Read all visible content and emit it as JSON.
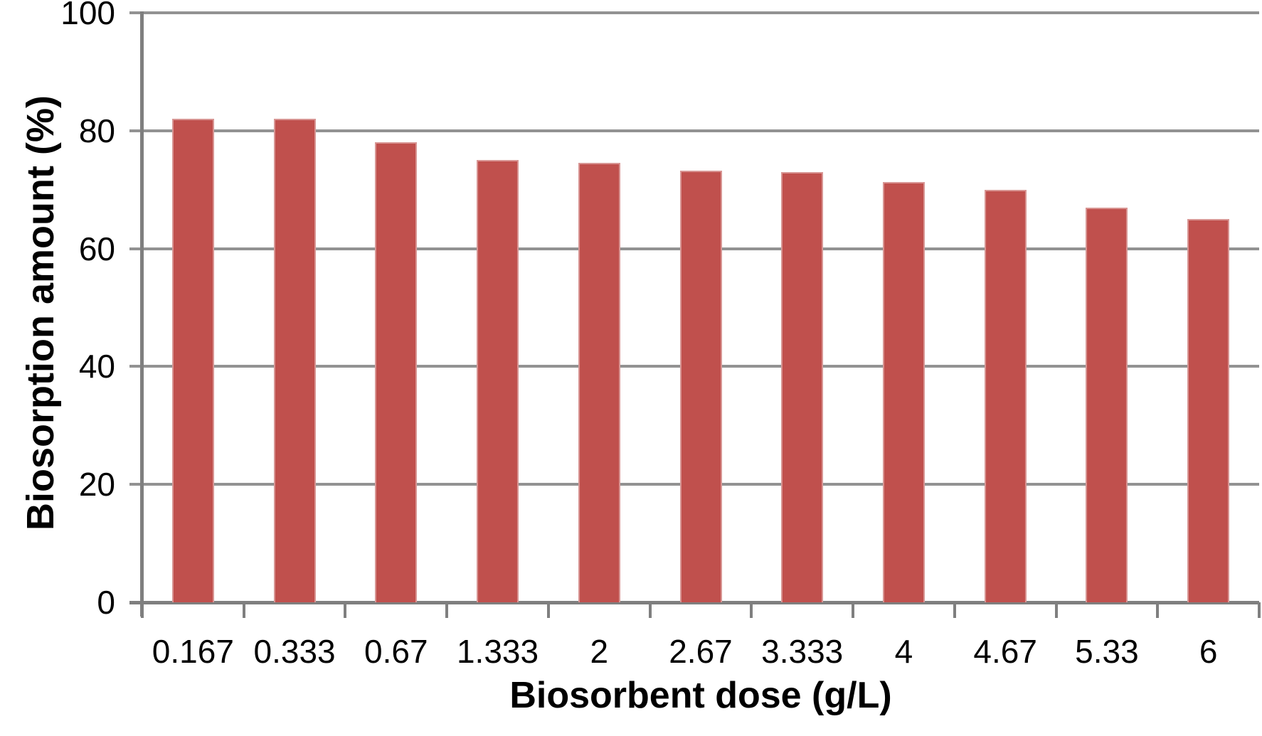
{
  "chart_data": {
    "type": "bar",
    "title": "",
    "xlabel": "Biosorbent dose (g/L)",
    "ylabel": "Biosorption amount (%)",
    "categories": [
      "0.167",
      "0.333",
      "0.67",
      "1.333",
      "2",
      "2.67",
      "3.333",
      "4",
      "4.67",
      "5.33",
      "6"
    ],
    "values": [
      82,
      82,
      78,
      75,
      74.5,
      73.2,
      73,
      71.3,
      70,
      67,
      65
    ],
    "ylim": [
      0,
      100
    ],
    "yticks": [
      0,
      20,
      40,
      60,
      80,
      100
    ],
    "ytick_labels": [
      "0",
      "20",
      "40",
      "60",
      "80",
      "100"
    ],
    "grid": true,
    "legend": false,
    "colors": {
      "bar_fill": "#c0504d",
      "bar_border": "#d89593",
      "gridline": "#929292",
      "axis": "#7f7f7f",
      "text": "#000000",
      "background": "#ffffff"
    }
  }
}
